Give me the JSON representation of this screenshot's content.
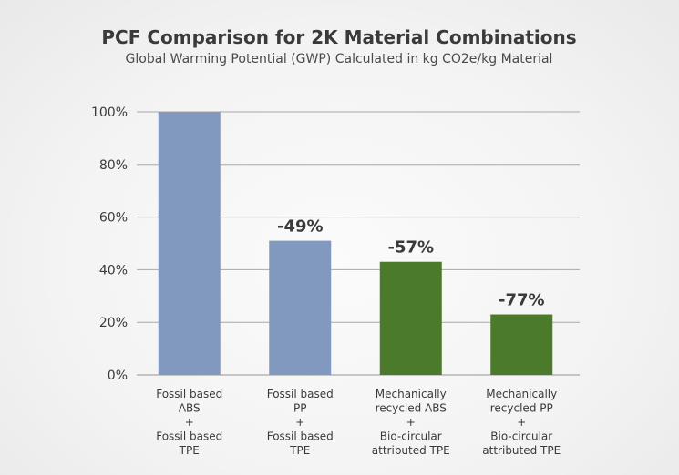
{
  "chart_data": {
    "type": "bar",
    "title": "PCF Comparison for 2K Material Combinations",
    "subtitle": "Global Warming Potential (GWP) Calculated in kg CO2e/kg Material",
    "xlabel": "",
    "ylabel": "",
    "ylim": [
      0,
      100
    ],
    "yticks": [
      "0%",
      "20%",
      "40%",
      "60%",
      "80%",
      "100%"
    ],
    "grid": true,
    "categories": [
      [
        "Fossil based",
        "ABS",
        "+",
        "Fossil based",
        "TPE"
      ],
      [
        "Fossil based",
        "PP",
        "+",
        "Fossil based",
        "TPE"
      ],
      [
        "Mechanically",
        "recycled ABS",
        "+",
        "Bio-circular",
        "attributed TPE"
      ],
      [
        "Mechanically",
        "recycled PP",
        "+",
        "Bio-circular",
        "attributed TPE"
      ]
    ],
    "values": [
      100,
      51,
      43,
      23
    ],
    "data_labels": [
      "",
      "-49%",
      "-57%",
      "-77%"
    ],
    "colors": [
      "#8199bf",
      "#8199bf",
      "#4a7a2a",
      "#4a7a2a"
    ],
    "grid_color": "#a8a8a8"
  }
}
